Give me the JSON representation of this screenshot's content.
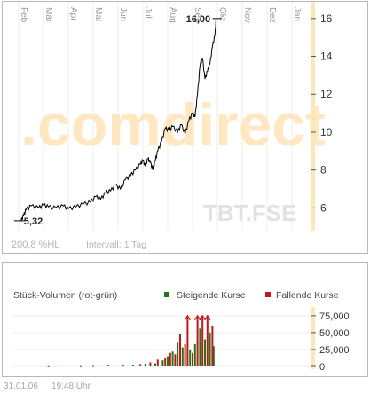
{
  "price_chart": {
    "watermark": ".comdirect",
    "symbol_watermark": "TBT.FSE",
    "scale_label": "200,8 %HL",
    "interval_label": "Intervall: 1 Tag",
    "start_label": "5,32",
    "end_label": "16,00"
  },
  "volume_chart": {
    "title": "Stück-Volumen (rot-grün)",
    "legend_up": "Steigende Kurse",
    "legend_down": "Fallende Kurse"
  },
  "footer": {
    "date": "31.01.06",
    "time": "19:48 Uhr"
  },
  "colors": {
    "up": "#1a7a1a",
    "down": "#c01818",
    "line": "#000000",
    "axis": "#f0d68a"
  },
  "chart_data": [
    {
      "type": "line",
      "x": [
        "Feb",
        "Mär",
        "Apr",
        "Mai",
        "Jun",
        "Jul",
        "Aug",
        "Sep",
        "Okt",
        "Nov",
        "Dez",
        "Jan"
      ],
      "ylim": [
        4.8,
        16.6
      ],
      "yticks": [
        6,
        8,
        10,
        12,
        14,
        16
      ],
      "series": [
        {
          "values": [
            [
              0.1,
              5.32
            ],
            [
              0.2,
              5.6
            ],
            [
              0.3,
              5.9
            ],
            [
              0.5,
              6.1
            ],
            [
              0.8,
              6.0
            ],
            [
              1.0,
              6.15
            ],
            [
              1.2,
              6.05
            ],
            [
              1.5,
              6.0
            ],
            [
              1.8,
              6.1
            ],
            [
              2.0,
              5.95
            ],
            [
              2.3,
              6.05
            ],
            [
              2.6,
              6.2
            ],
            [
              2.9,
              6.3
            ],
            [
              3.1,
              6.6
            ],
            [
              3.3,
              6.45
            ],
            [
              3.5,
              6.8
            ],
            [
              3.7,
              6.9
            ],
            [
              3.9,
              7.2
            ],
            [
              4.1,
              7.0
            ],
            [
              4.3,
              7.5
            ],
            [
              4.5,
              7.7
            ],
            [
              4.7,
              8.0
            ],
            [
              4.9,
              8.3
            ],
            [
              5.0,
              8.5
            ],
            [
              5.1,
              8.2
            ],
            [
              5.2,
              8.6
            ],
            [
              5.3,
              8.4
            ],
            [
              5.4,
              8.0
            ],
            [
              5.5,
              8.5
            ],
            [
              5.6,
              9.0
            ],
            [
              5.75,
              9.5
            ],
            [
              5.9,
              10.2
            ],
            [
              6.05,
              10.1
            ],
            [
              6.2,
              10.3
            ],
            [
              6.4,
              10.0
            ],
            [
              6.55,
              10.4
            ],
            [
              6.7,
              9.9
            ],
            [
              6.85,
              10.6
            ],
            [
              7.0,
              11.0
            ],
            [
              7.1,
              10.8
            ],
            [
              7.2,
              12.0
            ],
            [
              7.3,
              13.5
            ],
            [
              7.4,
              13.9
            ],
            [
              7.5,
              12.8
            ],
            [
              7.6,
              13.2
            ],
            [
              7.7,
              13.6
            ],
            [
              7.8,
              14.5
            ],
            [
              7.9,
              15.1
            ],
            [
              7.95,
              16.0
            ]
          ]
        }
      ]
    },
    {
      "type": "bar",
      "ylim": [
        0,
        80000
      ],
      "yticks": [
        0,
        25000,
        50000,
        75000
      ],
      "series": [
        {
          "name": "Steigende Kurse",
          "values": [
            [
              2.5,
              300
            ],
            [
              3.6,
              1500
            ],
            [
              4.6,
              2500
            ],
            [
              5.1,
              4000
            ],
            [
              5.5,
              4500
            ],
            [
              5.8,
              9000
            ],
            [
              6.0,
              15000
            ],
            [
              6.2,
              22000
            ],
            [
              6.4,
              35000
            ],
            [
              6.6,
              28000
            ],
            [
              6.9,
              25000
            ],
            [
              7.1,
              33000
            ],
            [
              7.3,
              56000
            ],
            [
              7.5,
              40000
            ],
            [
              7.7,
              50000
            ],
            [
              7.85,
              30000
            ]
          ]
        },
        {
          "name": "Fallende Kurse",
          "values": [
            [
              1.2,
              300
            ],
            [
              3.0,
              700
            ],
            [
              4.2,
              1200
            ],
            [
              4.9,
              3500
            ],
            [
              5.3,
              6000
            ],
            [
              5.6,
              10000
            ],
            [
              5.9,
              12000
            ],
            [
              6.1,
              20000
            ],
            [
              6.3,
              18000
            ],
            [
              6.5,
              48000
            ],
            [
              6.7,
              33000
            ],
            [
              6.8,
              78000
            ],
            [
              7.0,
              20000
            ],
            [
              7.2,
              78000
            ],
            [
              7.4,
              78000
            ],
            [
              7.6,
              78000
            ],
            [
              7.8,
              60000
            ]
          ]
        }
      ]
    }
  ]
}
